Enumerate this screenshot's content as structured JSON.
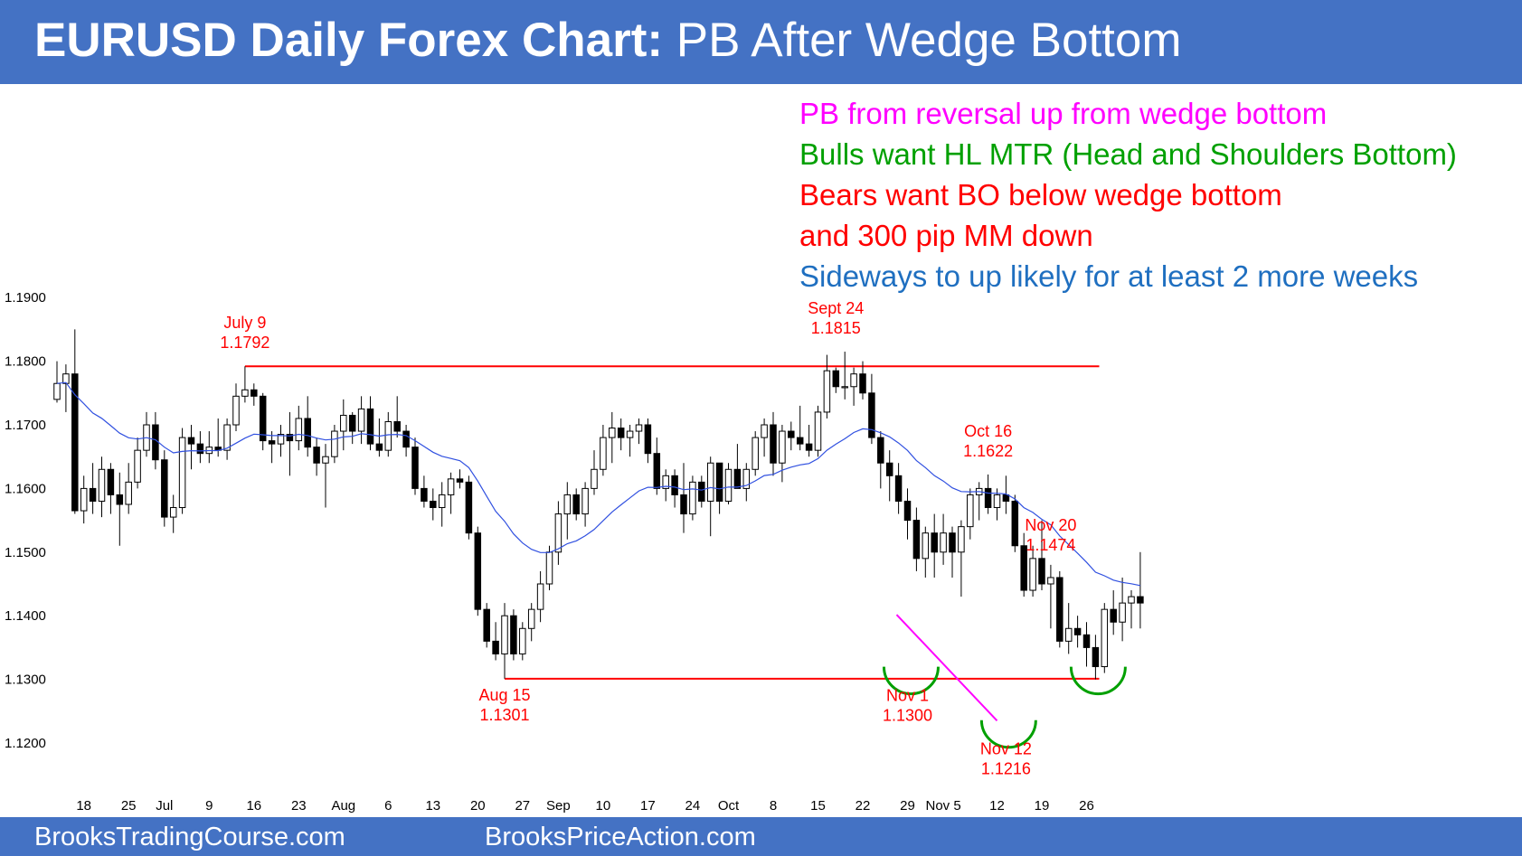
{
  "header": {
    "title_bold": "EURUSD Daily Forex Chart:",
    "title_rest": "PB After Wedge Bottom"
  },
  "notes": [
    {
      "text": "PB from reversal up from wedge bottom",
      "color": "#ff00ff"
    },
    {
      "text": "Bulls want HL MTR (Head and Shoulders Bottom)",
      "color": "#00a000"
    },
    {
      "text": "Bears want BO below wedge bottom",
      "color": "#ff0000"
    },
    {
      "text": "and 300 pip MM down",
      "color": "#ff0000"
    },
    {
      "text": "Sideways to up likely for at least 2 more weeks",
      "color": "#1f6fc0"
    }
  ],
  "footer": {
    "left_link": "BrooksTradingCourse.com",
    "right_link": "BrooksPriceAction.com"
  },
  "colors": {
    "band": "#4472c4",
    "resistance_line": "#ff0000",
    "ema": "#3050e0",
    "wedge_line": "#ff00ff",
    "bottom_arcs": "#00a000",
    "annotation_text": "#ff0000"
  },
  "chart_data": {
    "type": "candlestick",
    "title": "EURUSD Daily Forex Chart: PB After Wedge Bottom",
    "y_ticks": [
      "1.1200",
      "1.1300",
      "1.1400",
      "1.1500",
      "1.1600",
      "1.1700",
      "1.1800",
      "1.1900"
    ],
    "ylim": [
      1.1125,
      1.1925
    ],
    "x_ticks": [
      {
        "label": "18",
        "bar": 3
      },
      {
        "label": "25",
        "bar": 8
      },
      {
        "label": "Jul",
        "bar": 12
      },
      {
        "label": "9",
        "bar": 17
      },
      {
        "label": "16",
        "bar": 22
      },
      {
        "label": "23",
        "bar": 27
      },
      {
        "label": "Aug",
        "bar": 32
      },
      {
        "label": "6",
        "bar": 37
      },
      {
        "label": "13",
        "bar": 42
      },
      {
        "label": "20",
        "bar": 47
      },
      {
        "label": "27",
        "bar": 52
      },
      {
        "label": "Sep",
        "bar": 56
      },
      {
        "label": "10",
        "bar": 61
      },
      {
        "label": "17",
        "bar": 66
      },
      {
        "label": "24",
        "bar": 71
      },
      {
        "label": "Oct",
        "bar": 75
      },
      {
        "label": "8",
        "bar": 80
      },
      {
        "label": "15",
        "bar": 85
      },
      {
        "label": "22",
        "bar": 90
      },
      {
        "label": "29",
        "bar": 95
      },
      {
        "label": "Nov 5",
        "bar": 99
      },
      {
        "label": "12",
        "bar": 105
      },
      {
        "label": "19",
        "bar": 110
      },
      {
        "label": "26",
        "bar": 115
      }
    ],
    "bars": [
      {
        "o": 1.174,
        "h": 1.18,
        "l": 1.1735,
        "c": 1.1765
      },
      {
        "o": 1.1765,
        "h": 1.1795,
        "l": 1.172,
        "c": 1.178
      },
      {
        "o": 1.178,
        "h": 1.185,
        "l": 1.156,
        "c": 1.1565
      },
      {
        "o": 1.1565,
        "h": 1.162,
        "l": 1.1545,
        "c": 1.16
      },
      {
        "o": 1.16,
        "h": 1.164,
        "l": 1.156,
        "c": 1.158
      },
      {
        "o": 1.158,
        "h": 1.165,
        "l": 1.1555,
        "c": 1.163
      },
      {
        "o": 1.163,
        "h": 1.164,
        "l": 1.156,
        "c": 1.159
      },
      {
        "o": 1.159,
        "h": 1.1625,
        "l": 1.151,
        "c": 1.1575
      },
      {
        "o": 1.1575,
        "h": 1.164,
        "l": 1.156,
        "c": 1.161
      },
      {
        "o": 1.161,
        "h": 1.168,
        "l": 1.16,
        "c": 1.166
      },
      {
        "o": 1.166,
        "h": 1.172,
        "l": 1.165,
        "c": 1.17
      },
      {
        "o": 1.17,
        "h": 1.172,
        "l": 1.163,
        "c": 1.1645
      },
      {
        "o": 1.1645,
        "h": 1.166,
        "l": 1.154,
        "c": 1.1555
      },
      {
        "o": 1.1555,
        "h": 1.159,
        "l": 1.153,
        "c": 1.157
      },
      {
        "o": 1.157,
        "h": 1.1695,
        "l": 1.156,
        "c": 1.168
      },
      {
        "o": 1.168,
        "h": 1.17,
        "l": 1.163,
        "c": 1.167
      },
      {
        "o": 1.167,
        "h": 1.169,
        "l": 1.164,
        "c": 1.1655
      },
      {
        "o": 1.1655,
        "h": 1.169,
        "l": 1.164,
        "c": 1.1665
      },
      {
        "o": 1.1665,
        "h": 1.171,
        "l": 1.165,
        "c": 1.166
      },
      {
        "o": 1.166,
        "h": 1.171,
        "l": 1.1645,
        "c": 1.17
      },
      {
        "o": 1.17,
        "h": 1.1765,
        "l": 1.169,
        "c": 1.1745
      },
      {
        "o": 1.1745,
        "h": 1.1792,
        "l": 1.1735,
        "c": 1.1755
      },
      {
        "o": 1.1755,
        "h": 1.1765,
        "l": 1.173,
        "c": 1.1745
      },
      {
        "o": 1.1745,
        "h": 1.175,
        "l": 1.166,
        "c": 1.1675
      },
      {
        "o": 1.1675,
        "h": 1.169,
        "l": 1.164,
        "c": 1.167
      },
      {
        "o": 1.167,
        "h": 1.17,
        "l": 1.165,
        "c": 1.1685
      },
      {
        "o": 1.1685,
        "h": 1.172,
        "l": 1.162,
        "c": 1.1675
      },
      {
        "o": 1.1675,
        "h": 1.173,
        "l": 1.166,
        "c": 1.171
      },
      {
        "o": 1.171,
        "h": 1.1745,
        "l": 1.165,
        "c": 1.1665
      },
      {
        "o": 1.1665,
        "h": 1.168,
        "l": 1.162,
        "c": 1.164
      },
      {
        "o": 1.164,
        "h": 1.167,
        "l": 1.157,
        "c": 1.165
      },
      {
        "o": 1.165,
        "h": 1.17,
        "l": 1.164,
        "c": 1.169
      },
      {
        "o": 1.169,
        "h": 1.174,
        "l": 1.166,
        "c": 1.1715
      },
      {
        "o": 1.1715,
        "h": 1.172,
        "l": 1.167,
        "c": 1.169
      },
      {
        "o": 1.169,
        "h": 1.1745,
        "l": 1.167,
        "c": 1.1725
      },
      {
        "o": 1.1725,
        "h": 1.1745,
        "l": 1.166,
        "c": 1.167
      },
      {
        "o": 1.167,
        "h": 1.171,
        "l": 1.165,
        "c": 1.166
      },
      {
        "o": 1.166,
        "h": 1.172,
        "l": 1.165,
        "c": 1.1705
      },
      {
        "o": 1.1705,
        "h": 1.1745,
        "l": 1.168,
        "c": 1.169
      },
      {
        "o": 1.169,
        "h": 1.17,
        "l": 1.165,
        "c": 1.1665
      },
      {
        "o": 1.1665,
        "h": 1.168,
        "l": 1.159,
        "c": 1.16
      },
      {
        "o": 1.16,
        "h": 1.162,
        "l": 1.157,
        "c": 1.158
      },
      {
        "o": 1.158,
        "h": 1.16,
        "l": 1.155,
        "c": 1.157
      },
      {
        "o": 1.157,
        "h": 1.161,
        "l": 1.154,
        "c": 1.159
      },
      {
        "o": 1.159,
        "h": 1.1625,
        "l": 1.156,
        "c": 1.1615
      },
      {
        "o": 1.1615,
        "h": 1.163,
        "l": 1.16,
        "c": 1.161
      },
      {
        "o": 1.161,
        "h": 1.162,
        "l": 1.152,
        "c": 1.153
      },
      {
        "o": 1.153,
        "h": 1.154,
        "l": 1.14,
        "c": 1.141
      },
      {
        "o": 1.141,
        "h": 1.142,
        "l": 1.135,
        "c": 1.136
      },
      {
        "o": 1.136,
        "h": 1.139,
        "l": 1.133,
        "c": 1.134
      },
      {
        "o": 1.134,
        "h": 1.142,
        "l": 1.1301,
        "c": 1.14
      },
      {
        "o": 1.14,
        "h": 1.141,
        "l": 1.133,
        "c": 1.134
      },
      {
        "o": 1.134,
        "h": 1.139,
        "l": 1.133,
        "c": 1.138
      },
      {
        "o": 1.138,
        "h": 1.142,
        "l": 1.136,
        "c": 1.141
      },
      {
        "o": 1.141,
        "h": 1.147,
        "l": 1.139,
        "c": 1.145
      },
      {
        "o": 1.145,
        "h": 1.151,
        "l": 1.144,
        "c": 1.15
      },
      {
        "o": 1.15,
        "h": 1.158,
        "l": 1.148,
        "c": 1.156
      },
      {
        "o": 1.156,
        "h": 1.161,
        "l": 1.152,
        "c": 1.159
      },
      {
        "o": 1.159,
        "h": 1.16,
        "l": 1.155,
        "c": 1.156
      },
      {
        "o": 1.156,
        "h": 1.161,
        "l": 1.154,
        "c": 1.16
      },
      {
        "o": 1.16,
        "h": 1.166,
        "l": 1.159,
        "c": 1.163
      },
      {
        "o": 1.163,
        "h": 1.17,
        "l": 1.162,
        "c": 1.168
      },
      {
        "o": 1.168,
        "h": 1.172,
        "l": 1.164,
        "c": 1.1695
      },
      {
        "o": 1.1695,
        "h": 1.171,
        "l": 1.166,
        "c": 1.168
      },
      {
        "o": 1.168,
        "h": 1.17,
        "l": 1.165,
        "c": 1.169
      },
      {
        "o": 1.169,
        "h": 1.171,
        "l": 1.167,
        "c": 1.17
      },
      {
        "o": 1.17,
        "h": 1.171,
        "l": 1.164,
        "c": 1.1655
      },
      {
        "o": 1.1655,
        "h": 1.168,
        "l": 1.159,
        "c": 1.16
      },
      {
        "o": 1.16,
        "h": 1.163,
        "l": 1.158,
        "c": 1.162
      },
      {
        "o": 1.162,
        "h": 1.163,
        "l": 1.157,
        "c": 1.159
      },
      {
        "o": 1.159,
        "h": 1.164,
        "l": 1.153,
        "c": 1.156
      },
      {
        "o": 1.156,
        "h": 1.162,
        "l": 1.155,
        "c": 1.161
      },
      {
        "o": 1.161,
        "h": 1.162,
        "l": 1.157,
        "c": 1.158
      },
      {
        "o": 1.158,
        "h": 1.165,
        "l": 1.1525,
        "c": 1.164
      },
      {
        "o": 1.164,
        "h": 1.164,
        "l": 1.156,
        "c": 1.158
      },
      {
        "o": 1.158,
        "h": 1.164,
        "l": 1.1575,
        "c": 1.163
      },
      {
        "o": 1.163,
        "h": 1.167,
        "l": 1.16,
        "c": 1.16
      },
      {
        "o": 1.16,
        "h": 1.164,
        "l": 1.158,
        "c": 1.163
      },
      {
        "o": 1.163,
        "h": 1.169,
        "l": 1.162,
        "c": 1.168
      },
      {
        "o": 1.168,
        "h": 1.171,
        "l": 1.165,
        "c": 1.17
      },
      {
        "o": 1.17,
        "h": 1.172,
        "l": 1.162,
        "c": 1.164
      },
      {
        "o": 1.164,
        "h": 1.17,
        "l": 1.161,
        "c": 1.169
      },
      {
        "o": 1.169,
        "h": 1.1705,
        "l": 1.166,
        "c": 1.168
      },
      {
        "o": 1.168,
        "h": 1.173,
        "l": 1.166,
        "c": 1.167
      },
      {
        "o": 1.167,
        "h": 1.17,
        "l": 1.165,
        "c": 1.166
      },
      {
        "o": 1.166,
        "h": 1.173,
        "l": 1.165,
        "c": 1.172
      },
      {
        "o": 1.172,
        "h": 1.181,
        "l": 1.171,
        "c": 1.1785
      },
      {
        "o": 1.1785,
        "h": 1.179,
        "l": 1.175,
        "c": 1.176
      },
      {
        "o": 1.176,
        "h": 1.1815,
        "l": 1.174,
        "c": 1.176
      },
      {
        "o": 1.176,
        "h": 1.179,
        "l": 1.173,
        "c": 1.178
      },
      {
        "o": 1.178,
        "h": 1.18,
        "l": 1.174,
        "c": 1.175
      },
      {
        "o": 1.175,
        "h": 1.178,
        "l": 1.167,
        "c": 1.168
      },
      {
        "o": 1.168,
        "h": 1.169,
        "l": 1.16,
        "c": 1.164
      },
      {
        "o": 1.164,
        "h": 1.166,
        "l": 1.158,
        "c": 1.162
      },
      {
        "o": 1.162,
        "h": 1.164,
        "l": 1.156,
        "c": 1.158
      },
      {
        "o": 1.158,
        "h": 1.16,
        "l": 1.152,
        "c": 1.155
      },
      {
        "o": 1.155,
        "h": 1.157,
        "l": 1.147,
        "c": 1.149
      },
      {
        "o": 1.149,
        "h": 1.154,
        "l": 1.146,
        "c": 1.153
      },
      {
        "o": 1.153,
        "h": 1.156,
        "l": 1.146,
        "c": 1.15
      },
      {
        "o": 1.15,
        "h": 1.156,
        "l": 1.148,
        "c": 1.153
      },
      {
        "o": 1.153,
        "h": 1.154,
        "l": 1.146,
        "c": 1.15
      },
      {
        "o": 1.15,
        "h": 1.155,
        "l": 1.143,
        "c": 1.154
      },
      {
        "o": 1.154,
        "h": 1.16,
        "l": 1.152,
        "c": 1.159
      },
      {
        "o": 1.159,
        "h": 1.161,
        "l": 1.155,
        "c": 1.16
      },
      {
        "o": 1.16,
        "h": 1.1622,
        "l": 1.156,
        "c": 1.157
      },
      {
        "o": 1.157,
        "h": 1.16,
        "l": 1.155,
        "c": 1.159
      },
      {
        "o": 1.159,
        "h": 1.162,
        "l": 1.156,
        "c": 1.158
      },
      {
        "o": 1.158,
        "h": 1.159,
        "l": 1.15,
        "c": 1.151
      },
      {
        "o": 1.151,
        "h": 1.153,
        "l": 1.143,
        "c": 1.144
      },
      {
        "o": 1.144,
        "h": 1.151,
        "l": 1.143,
        "c": 1.149
      },
      {
        "o": 1.149,
        "h": 1.155,
        "l": 1.144,
        "c": 1.145
      },
      {
        "o": 1.145,
        "h": 1.148,
        "l": 1.138,
        "c": 1.146
      },
      {
        "o": 1.146,
        "h": 1.147,
        "l": 1.135,
        "c": 1.136
      },
      {
        "o": 1.136,
        "h": 1.142,
        "l": 1.134,
        "c": 1.138
      },
      {
        "o": 1.138,
        "h": 1.14,
        "l": 1.135,
        "c": 1.137
      },
      {
        "o": 1.137,
        "h": 1.139,
        "l": 1.132,
        "c": 1.135
      },
      {
        "o": 1.135,
        "h": 1.137,
        "l": 1.13,
        "c": 1.132
      },
      {
        "o": 1.132,
        "h": 1.142,
        "l": 1.131,
        "c": 1.141
      },
      {
        "o": 1.141,
        "h": 1.144,
        "l": 1.137,
        "c": 1.139
      },
      {
        "o": 1.139,
        "h": 1.146,
        "l": 1.136,
        "c": 1.142
      },
      {
        "o": 1.142,
        "h": 1.144,
        "l": 1.138,
        "c": 1.143
      },
      {
        "o": 1.143,
        "h": 1.15,
        "l": 1.138,
        "c": 1.142
      }
    ],
    "resistance_line": {
      "price": 1.1792,
      "from_bar": 21,
      "to_bar": 115
    },
    "support_line": {
      "price": 1.1301,
      "from_bar": 50,
      "to_bar": 115
    },
    "wedge_line": {
      "from_bar": 95,
      "from_price": 1.143,
      "to_bar": 105,
      "to_price": 1.1235
    },
    "bottom_arcs": [
      {
        "bar": 95.4,
        "price": 1.13
      },
      {
        "bar": 106.3,
        "price": 1.1216
      },
      {
        "bar": 116.3,
        "price": 1.13
      }
    ],
    "annotations": [
      {
        "lines": [
          "July 9",
          "1.1792"
        ],
        "bar": 21,
        "price": 1.1792,
        "pos": "above"
      },
      {
        "lines": [
          "Sept 24",
          "1.1815"
        ],
        "bar": 87,
        "price": 1.1815,
        "pos": "above"
      },
      {
        "lines": [
          "Oct 16",
          "1.1622"
        ],
        "bar": 104,
        "price": 1.1622,
        "pos": "above"
      },
      {
        "lines": [
          "Nov 20",
          "1.1474"
        ],
        "bar": 111,
        "price": 1.1474,
        "pos": "above"
      },
      {
        "lines": [
          "Aug 15",
          "1.1301"
        ],
        "bar": 50,
        "price": 1.1301,
        "pos": "below"
      },
      {
        "lines": [
          "Nov 1",
          "1.1300"
        ],
        "bar": 95,
        "price": 1.13,
        "pos": "below"
      },
      {
        "lines": [
          "Nov 12",
          "1.1216"
        ],
        "bar": 106,
        "price": 1.1216,
        "pos": "below"
      }
    ]
  }
}
